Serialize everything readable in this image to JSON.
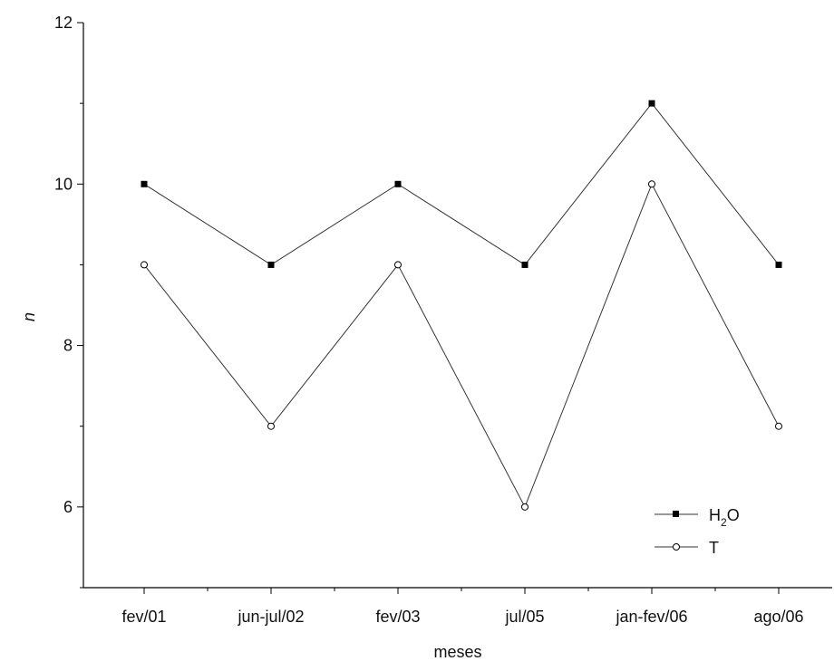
{
  "chart_data": {
    "type": "line",
    "categories": [
      "fev/01",
      "jun-jul/02",
      "fev/03",
      "jul/05",
      "jan-fev/06",
      "ago/06"
    ],
    "series": [
      {
        "name_main": "H",
        "name_sub": "2",
        "name_tail": "O",
        "marker": "square-filled",
        "values": [
          10,
          9,
          10,
          9,
          11,
          9
        ]
      },
      {
        "name": "T",
        "marker": "circle-open",
        "values": [
          9,
          7,
          9,
          6,
          10,
          7
        ]
      }
    ],
    "xlabel": "meses",
    "ylabel": "n",
    "ylim": [
      5,
      12
    ],
    "yticks_labeled": [
      "6",
      "8",
      "10",
      "12"
    ],
    "grid": false,
    "legend_position": "bottom-right",
    "colors": {
      "line": "#333333",
      "marker": "#000000",
      "axis": "#000000"
    }
  }
}
